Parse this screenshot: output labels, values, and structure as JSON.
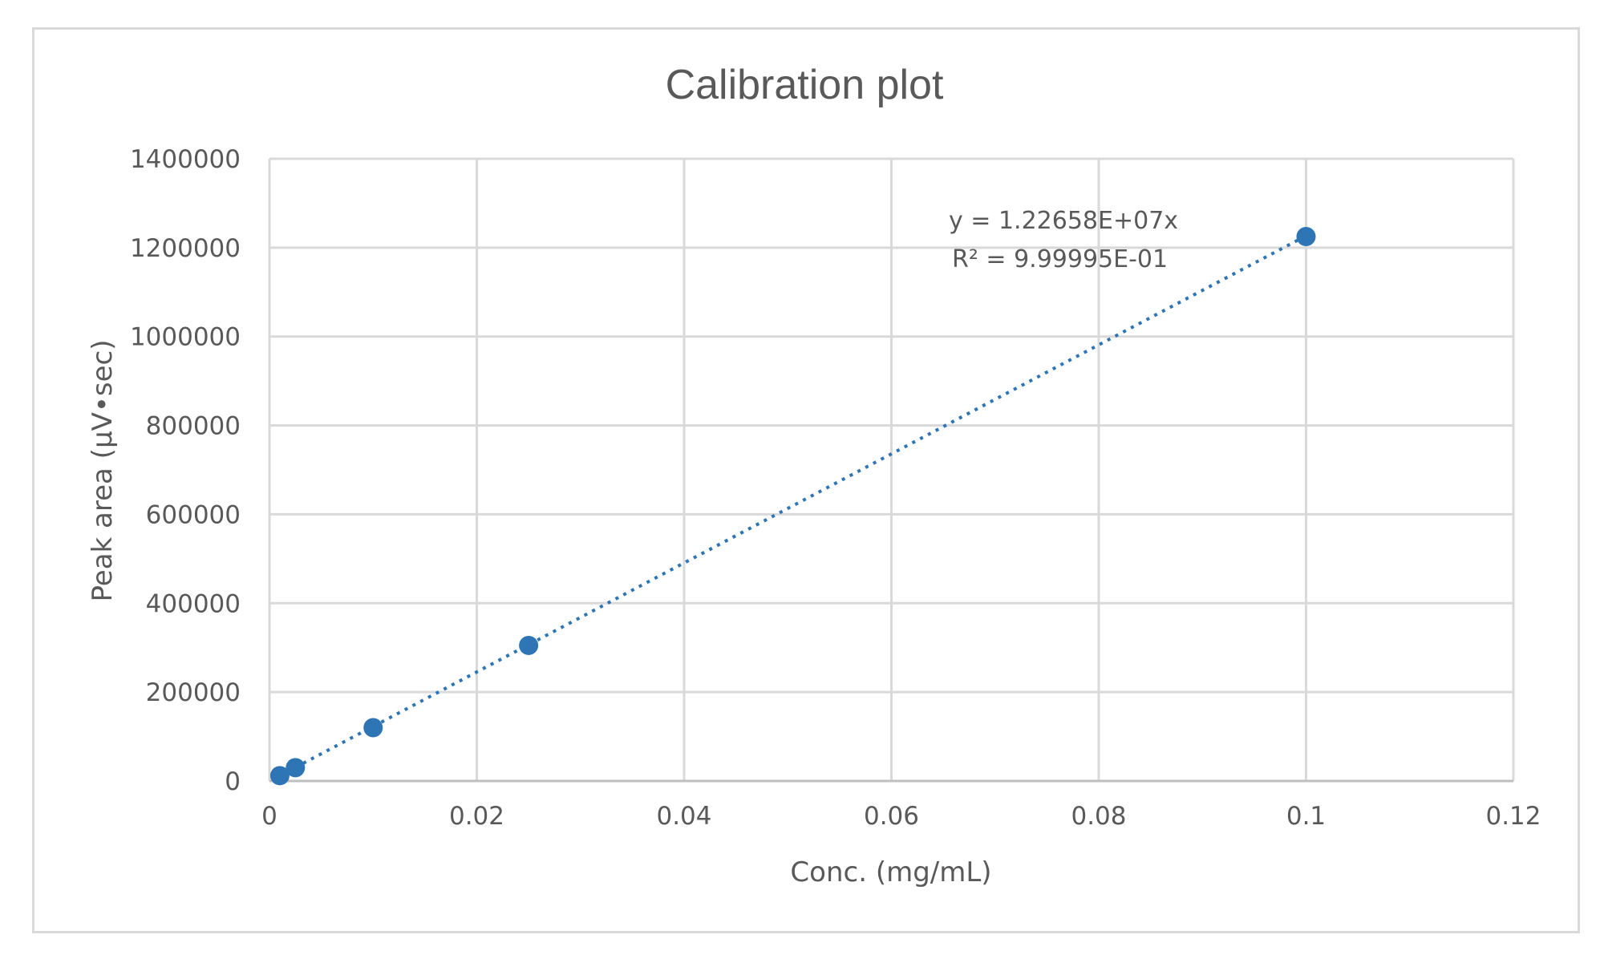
{
  "chart_data": {
    "type": "scatter",
    "title": "Calibration plot",
    "xlabel": "Conc. (mg/mL)",
    "ylabel": "Peak area (µV•sec)",
    "xlim": [
      0,
      0.12
    ],
    "ylim": [
      0,
      1400000
    ],
    "x_ticks": [
      "0",
      "0.02",
      "0.04",
      "0.06",
      "0.08",
      "0.1",
      "0.12"
    ],
    "y_ticks": [
      "0",
      "200000",
      "400000",
      "600000",
      "800000",
      "1000000",
      "1200000",
      "1400000"
    ],
    "grid": true,
    "legend": "none",
    "series": [
      {
        "x": [
          0.001,
          0.0025,
          0.01,
          0.025,
          0.1
        ],
        "y": [
          12000,
          30000,
          120000,
          305000,
          1225000
        ],
        "color": "#2e75b6"
      }
    ],
    "trendline": {
      "type": "linear",
      "slope": 12265800,
      "intercept": 0,
      "style": "dotted",
      "color": "#2e75b6",
      "equation": "y = 1.22658E+07x",
      "r_squared": "R² = 9.99995E-01"
    }
  }
}
